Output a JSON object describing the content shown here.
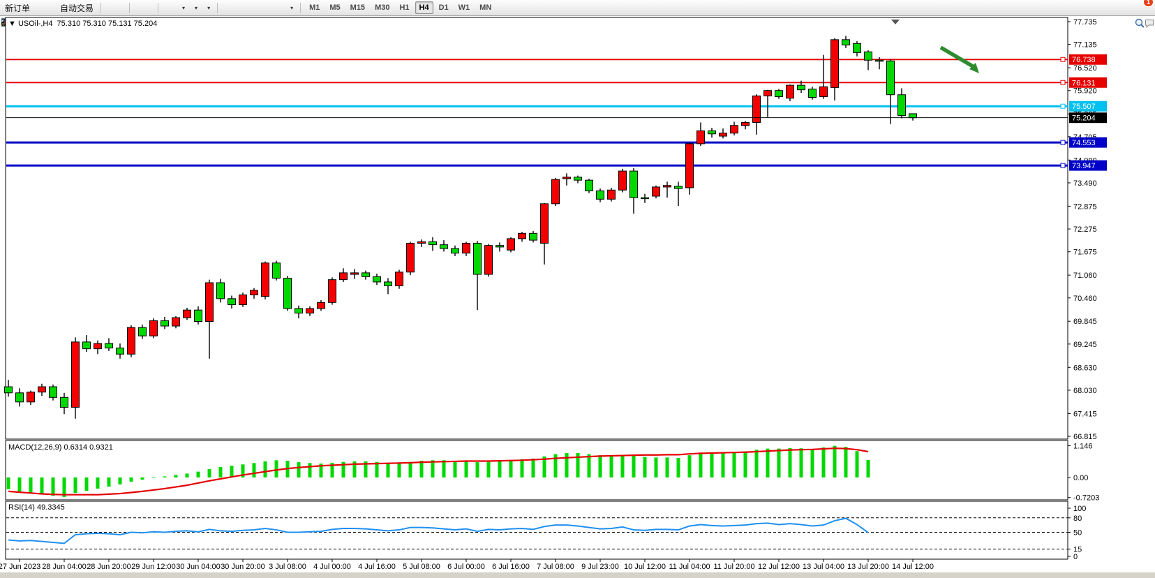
{
  "toolbar": {
    "new_order_label": "新订单",
    "auto_trading_label": "自动交易",
    "timeframes": [
      "M1",
      "M5",
      "M15",
      "M30",
      "H1",
      "H4",
      "D1",
      "W1",
      "MN"
    ],
    "active_timeframe": "H4",
    "notification_badge": "1",
    "left_items": [
      {
        "name": "new-chart-icon",
        "icon": "diamond"
      },
      {
        "name": "profiles-icon",
        "icon": "window"
      },
      {
        "name": "market-depth-icon",
        "icon": "signal"
      }
    ],
    "mid_items": [
      {
        "name": "bar-chart-icon",
        "icon": "bars"
      },
      {
        "name": "candlestick-chart-icon",
        "icon": "candles"
      },
      {
        "name": "line-chart-icon",
        "icon": "line"
      },
      {
        "name": "sep"
      },
      {
        "name": "zoom-in-icon",
        "icon": "zoomin"
      },
      {
        "name": "zoom-out-icon",
        "icon": "zoomout"
      },
      {
        "name": "tile-windows-icon",
        "icon": "tile"
      },
      {
        "name": "sep"
      },
      {
        "name": "auto-scroll-icon",
        "icon": "autoscroll"
      },
      {
        "name": "chart-shift-icon",
        "icon": "chartshift"
      },
      {
        "name": "indicators-icon",
        "icon": "indicators",
        "dd": true
      },
      {
        "name": "periods-icon",
        "icon": "clock",
        "dd": true
      },
      {
        "name": "templates-icon",
        "icon": "template",
        "dd": true
      },
      {
        "name": "sep"
      },
      {
        "name": "cursor-icon",
        "icon": "cursor"
      },
      {
        "name": "crosshair-icon",
        "icon": "crosshair"
      },
      {
        "name": "vertical-line-icon",
        "icon": "vline"
      },
      {
        "name": "horizontal-line-icon",
        "icon": "hline"
      },
      {
        "name": "trendline-icon",
        "icon": "tline"
      },
      {
        "name": "equidistant-channel-icon",
        "icon": "channel"
      },
      {
        "name": "fibonacci-icon",
        "icon": "fibo"
      },
      {
        "name": "text-icon",
        "icon": "textA"
      },
      {
        "name": "text-label-icon",
        "icon": "textT"
      },
      {
        "name": "arrows-icon",
        "icon": "arrows",
        "dd": true
      },
      {
        "name": "sep"
      }
    ],
    "right_items": [
      {
        "name": "symbol-search-icon",
        "icon": "search"
      },
      {
        "name": "notifications-icon",
        "icon": "chat",
        "badge": "1"
      }
    ]
  },
  "chart": {
    "info_line": "▼ USOil-,H4  75.310 75.310 75.131 75.204",
    "symbol": "USOil-",
    "period": "H4",
    "ohlc_open": "75.310",
    "ohlc_high": "75.310",
    "ohlc_low": "75.131",
    "ohlc_close": "75.204",
    "macd_label": "MACD(12,26,9) 0.6314 0.9321",
    "rsi_label": "RSI(14) 49.3345"
  },
  "chart_data": [
    {
      "type": "candlestick",
      "title": "USOil-,H4",
      "bull_color": "#f40000",
      "bear_color": "#00d800",
      "wick_color": "#000000",
      "grid": false,
      "ylim": [
        66.7,
        77.85
      ],
      "y_axis_ticks": [
        "77.735",
        "77.135",
        "76.520",
        "75.920",
        "75.305",
        "74.705",
        "74.090",
        "73.490",
        "72.875",
        "72.275",
        "71.675",
        "71.060",
        "70.460",
        "69.845",
        "69.245",
        "68.630",
        "68.030",
        "67.415",
        "66.815"
      ],
      "x_axis_labels": [
        "27 Jun 2023",
        "28 Jun 04:00",
        "28 Jun 20:00",
        "29 Jun 12:00",
        "30 Jun 04:00",
        "30 Jun 20:00",
        "3 Jul 08:00",
        "4 Jul 00:00",
        "4 Jul 16:00",
        "5 Jul 08:00",
        "6 Jul 00:00",
        "6 Jul 16:00",
        "7 Jul 08:00",
        "9 Jul 23:00",
        "10 Jul 12:00",
        "11 Jul 04:00",
        "11 Jul 20:00",
        "12 Jul 12:00",
        "13 Jul 04:00",
        "13 Jul 20:00",
        "14 Jul 12:00"
      ],
      "hlines": [
        {
          "price": 76.738,
          "label": "76.738",
          "color": "#e60000",
          "width": 2
        },
        {
          "price": 76.131,
          "label": "76.131",
          "color": "#e60000",
          "width": 2
        },
        {
          "price": 75.507,
          "label": "75.507",
          "color": "#00c0f0",
          "width": 3
        },
        {
          "price": 74.553,
          "label": "74.553",
          "color": "#0000c8",
          "width": 3
        },
        {
          "price": 73.947,
          "label": "73.947",
          "color": "#0000c8",
          "width": 3
        }
      ],
      "current_price_line": {
        "price": 75.204,
        "label": "75.204",
        "color": "#000000",
        "width": 1
      },
      "annotation_arrow": {
        "color": "#2e8b2e",
        "from": [
          1348,
          68
        ],
        "to": [
          1394,
          95
        ]
      },
      "candles": [
        [
          68.12,
          68.3,
          67.86,
          67.96
        ],
        [
          67.96,
          68.08,
          67.6,
          67.72
        ],
        [
          67.72,
          68.02,
          67.64,
          67.98
        ],
        [
          67.98,
          68.2,
          67.88,
          68.12
        ],
        [
          68.12,
          68.18,
          67.76,
          67.84
        ],
        [
          67.84,
          67.96,
          67.4,
          67.58
        ],
        [
          67.58,
          69.42,
          67.28,
          69.3
        ],
        [
          69.3,
          69.48,
          69.04,
          69.12
        ],
        [
          69.12,
          69.34,
          68.98,
          69.26
        ],
        [
          69.26,
          69.4,
          69.06,
          69.14
        ],
        [
          69.14,
          69.26,
          68.86,
          68.98
        ],
        [
          68.98,
          69.74,
          68.9,
          69.68
        ],
        [
          69.68,
          69.76,
          69.38,
          69.46
        ],
        [
          69.46,
          69.92,
          69.4,
          69.86
        ],
        [
          69.86,
          69.96,
          69.64,
          69.72
        ],
        [
          69.72,
          69.98,
          69.66,
          69.94
        ],
        [
          69.94,
          70.2,
          69.88,
          70.14
        ],
        [
          70.14,
          70.24,
          69.76,
          69.84
        ],
        [
          69.84,
          70.94,
          68.86,
          70.86
        ],
        [
          70.86,
          70.96,
          70.34,
          70.44
        ],
        [
          70.44,
          70.52,
          70.18,
          70.28
        ],
        [
          70.28,
          70.6,
          70.22,
          70.54
        ],
        [
          70.54,
          70.72,
          70.44,
          70.66
        ],
        [
          70.5,
          71.42,
          70.42,
          71.38
        ],
        [
          71.38,
          71.44,
          70.92,
          70.98
        ],
        [
          70.98,
          71.04,
          70.12,
          70.18
        ],
        [
          70.18,
          70.26,
          69.92,
          70.06
        ],
        [
          70.06,
          70.24,
          69.98,
          70.18
        ],
        [
          70.18,
          70.4,
          70.12,
          70.34
        ],
        [
          70.34,
          71.0,
          70.28,
          70.94
        ],
        [
          70.94,
          71.24,
          70.88,
          71.12
        ],
        [
          71.08,
          71.22,
          70.96,
          71.12
        ],
        [
          71.12,
          71.18,
          70.94,
          71.02
        ],
        [
          71.02,
          71.1,
          70.8,
          70.88
        ],
        [
          70.88,
          70.98,
          70.56,
          70.78
        ],
        [
          70.78,
          71.2,
          70.7,
          71.14
        ],
        [
          71.14,
          71.94,
          71.06,
          71.9
        ],
        [
          71.9,
          72.0,
          71.8,
          71.94
        ],
        [
          71.94,
          72.06,
          71.7,
          71.86
        ],
        [
          71.86,
          71.98,
          71.68,
          71.76
        ],
        [
          71.76,
          71.84,
          71.56,
          71.64
        ],
        [
          71.64,
          71.94,
          71.56,
          71.9
        ],
        [
          71.9,
          71.96,
          70.14,
          71.08
        ],
        [
          71.08,
          71.88,
          71.02,
          71.84
        ],
        [
          71.84,
          71.92,
          71.68,
          71.8
        ],
        [
          71.72,
          72.06,
          71.66,
          72.02
        ],
        [
          72.02,
          72.2,
          71.94,
          72.16
        ],
        [
          72.16,
          72.22,
          71.92,
          71.98
        ],
        [
          71.9,
          72.96,
          71.34,
          72.94
        ],
        [
          72.94,
          73.62,
          72.88,
          73.58
        ],
        [
          73.6,
          73.74,
          73.42,
          73.64
        ],
        [
          73.64,
          73.68,
          73.48,
          73.56
        ],
        [
          73.56,
          73.6,
          73.22,
          73.28
        ],
        [
          73.28,
          73.34,
          72.98,
          73.06
        ],
        [
          73.06,
          73.36,
          73.0,
          73.3
        ],
        [
          73.3,
          73.86,
          73.24,
          73.8
        ],
        [
          73.8,
          73.88,
          72.68,
          73.1
        ],
        [
          73.1,
          73.2,
          72.96,
          73.08
        ],
        [
          73.14,
          73.42,
          73.08,
          73.38
        ],
        [
          73.38,
          73.52,
          73.1,
          73.42
        ],
        [
          73.4,
          73.52,
          72.88,
          73.34
        ],
        [
          73.36,
          74.56,
          73.18,
          74.52
        ],
        [
          74.52,
          75.08,
          74.46,
          74.86
        ],
        [
          74.86,
          74.94,
          74.68,
          74.78
        ],
        [
          74.72,
          74.92,
          74.66,
          74.8
        ],
        [
          74.8,
          75.1,
          74.74,
          75.0
        ],
        [
          75.0,
          75.12,
          74.9,
          75.08
        ],
        [
          75.08,
          75.82,
          74.76,
          75.78
        ],
        [
          75.78,
          75.94,
          75.22,
          75.92
        ],
        [
          75.92,
          75.96,
          75.7,
          75.76
        ],
        [
          75.72,
          76.08,
          75.64,
          76.06
        ],
        [
          76.06,
          76.18,
          75.86,
          75.94
        ],
        [
          75.96,
          76.02,
          75.68,
          75.74
        ],
        [
          75.76,
          76.86,
          75.7,
          76.02
        ],
        [
          76.0,
          77.3,
          75.66,
          77.26
        ],
        [
          77.26,
          77.36,
          77.04,
          77.12
        ],
        [
          77.16,
          77.22,
          76.82,
          76.92
        ],
        [
          76.94,
          76.98,
          76.46,
          76.72
        ],
        [
          76.72,
          76.8,
          76.48,
          76.7
        ],
        [
          76.7,
          76.74,
          75.04,
          75.81
        ],
        [
          75.81,
          75.98,
          75.19,
          75.26
        ],
        [
          75.31,
          75.31,
          75.131,
          75.204
        ]
      ]
    },
    {
      "type": "macd",
      "label": "MACD(12,26,9) 0.6314 0.9321",
      "params": [
        12,
        26,
        9
      ],
      "main_value": 0.6314,
      "signal_value": 0.9321,
      "histogram_color": "#00d800",
      "signal_color": "#e60000",
      "y_ticks": [
        "1.146",
        "0.00",
        "-0.7203"
      ],
      "histogram": [
        -0.42,
        -0.5,
        -0.55,
        -0.61,
        -0.66,
        -0.7,
        -0.56,
        -0.48,
        -0.4,
        -0.33,
        -0.25,
        -0.15,
        -0.08,
        -0.02,
        0.04,
        0.09,
        0.14,
        0.21,
        0.3,
        0.38,
        0.42,
        0.47,
        0.52,
        0.58,
        0.62,
        0.6,
        0.55,
        0.52,
        0.5,
        0.53,
        0.56,
        0.58,
        0.58,
        0.56,
        0.53,
        0.52,
        0.56,
        0.6,
        0.62,
        0.62,
        0.6,
        0.6,
        0.55,
        0.56,
        0.58,
        0.62,
        0.66,
        0.68,
        0.76,
        0.84,
        0.88,
        0.88,
        0.84,
        0.8,
        0.78,
        0.8,
        0.78,
        0.74,
        0.72,
        0.72,
        0.7,
        0.8,
        0.88,
        0.9,
        0.9,
        0.92,
        0.94,
        1.0,
        1.04,
        1.04,
        1.06,
        1.05,
        1.03,
        1.08,
        1.14,
        1.1,
        0.95,
        0.63
      ],
      "signal": [
        -0.5,
        -0.53,
        -0.56,
        -0.59,
        -0.61,
        -0.62,
        -0.62,
        -0.62,
        -0.62,
        -0.6,
        -0.58,
        -0.54,
        -0.5,
        -0.45,
        -0.4,
        -0.34,
        -0.28,
        -0.2,
        -0.12,
        -0.05,
        0.02,
        0.09,
        0.15,
        0.21,
        0.27,
        0.32,
        0.36,
        0.39,
        0.42,
        0.44,
        0.46,
        0.48,
        0.49,
        0.5,
        0.51,
        0.52,
        0.53,
        0.55,
        0.56,
        0.57,
        0.58,
        0.59,
        0.59,
        0.59,
        0.6,
        0.61,
        0.62,
        0.64,
        0.66,
        0.69,
        0.71,
        0.73,
        0.75,
        0.77,
        0.78,
        0.79,
        0.8,
        0.81,
        0.81,
        0.82,
        0.82,
        0.85,
        0.87,
        0.88,
        0.89,
        0.9,
        0.91,
        0.93,
        0.95,
        0.97,
        0.99,
        1.0,
        1.01,
        1.03,
        1.05,
        1.04,
        1.0,
        0.93
      ]
    },
    {
      "type": "rsi",
      "label": "RSI(14) 49.3345",
      "period": 14,
      "value": 49.3345,
      "line_color": "#2090f0",
      "levels": [
        80,
        50,
        15
      ],
      "y_ticks": [
        "100",
        "80",
        "50",
        "15",
        "0"
      ],
      "values": [
        34,
        32,
        33,
        31,
        29,
        27,
        45,
        47,
        48,
        47,
        45,
        50,
        49,
        51,
        50,
        52,
        53,
        51,
        56,
        53,
        52,
        54,
        55,
        58,
        55,
        50,
        50,
        51,
        52,
        56,
        58,
        58,
        57,
        55,
        53,
        55,
        60,
        60,
        59,
        57,
        55,
        57,
        52,
        56,
        55,
        57,
        58,
        56,
        62,
        65,
        65,
        63,
        60,
        57,
        58,
        61,
        55,
        54,
        56,
        56,
        55,
        63,
        66,
        64,
        63,
        64,
        65,
        68,
        69,
        66,
        68,
        66,
        63,
        65,
        74,
        79,
        66,
        49.3
      ]
    }
  ]
}
